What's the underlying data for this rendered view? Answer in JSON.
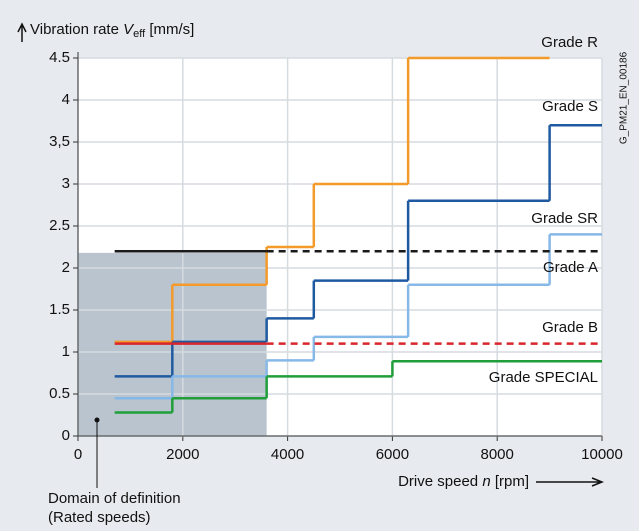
{
  "chart_data": {
    "type": "step",
    "y_label": {
      "text": "Vibration rate ",
      "var": "V",
      "sub": "eff",
      "unit": " [mm/s]"
    },
    "x_label": {
      "text": "Drive speed ",
      "var": "n",
      "unit": " [rpm]"
    },
    "xlim": [
      0,
      10000
    ],
    "xticks": [
      0,
      2000,
      4000,
      6000,
      8000,
      10000
    ],
    "ylim": [
      0,
      4.5
    ],
    "yticks": [
      0,
      0.5,
      1,
      1.5,
      2,
      2.5,
      3,
      {
        "value": 3.5,
        "label": "3,5"
      },
      4,
      4.5
    ],
    "grid": true,
    "domain_x": [
      0,
      3600
    ],
    "domain_y": [
      0,
      2.18
    ],
    "annotations": [
      "Domain of definition",
      "(Rated speeds)",
      "G_PM21_EN_00186"
    ],
    "series": [
      {
        "name": "Grade R",
        "color": "#f39a2b",
        "x": [
          700,
          1800,
          3600,
          4500,
          6300,
          9000
        ],
        "values": [
          1.12,
          1.8,
          2.25,
          3.0,
          4.5,
          4.5
        ]
      },
      {
        "name": "Grade S",
        "color": "#1f5aa0",
        "x": [
          700,
          1800,
          3600,
          4500,
          6300,
          9000,
          10000
        ],
        "values": [
          0.71,
          1.12,
          1.4,
          1.85,
          2.8,
          3.7,
          3.7
        ]
      },
      {
        "name": "Grade SR",
        "color": "#86b8e8",
        "x": [
          700,
          1800,
          3600,
          4500,
          6300,
          9000,
          10000
        ],
        "values": [
          0.45,
          0.71,
          0.9,
          1.18,
          1.8,
          2.4,
          2.4
        ]
      },
      {
        "name": "Grade A",
        "color": "#1a1a1a",
        "x": [
          700,
          3600,
          10000
        ],
        "values": [
          2.2,
          2.2,
          2.2
        ],
        "linestyle": [
          "solid",
          "dashed"
        ]
      },
      {
        "name": "Grade B",
        "color": "#d9262d",
        "x": [
          700,
          3600,
          10000
        ],
        "values": [
          1.1,
          1.1,
          1.1
        ],
        "linestyle": [
          "solid",
          "dashed"
        ]
      },
      {
        "name": "Grade SPECIAL",
        "color": "#1f9e3a",
        "x": [
          700,
          1800,
          3600,
          6000,
          10000
        ],
        "values": [
          0.28,
          0.45,
          0.71,
          0.89,
          0.89
        ]
      }
    ]
  }
}
